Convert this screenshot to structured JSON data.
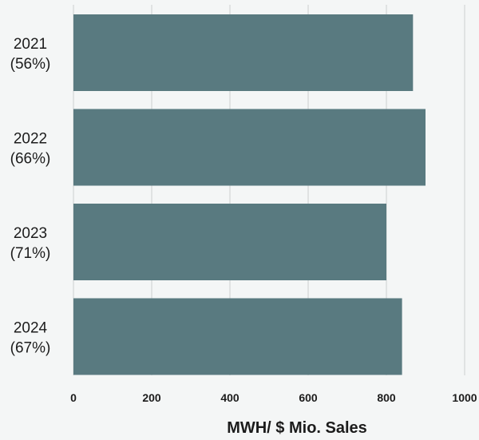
{
  "chart_data": {
    "type": "bar",
    "orientation": "horizontal",
    "categories": [
      [
        "2021",
        "(56%)"
      ],
      [
        "2022",
        "(66%)"
      ],
      [
        "2023",
        "(71%)"
      ],
      [
        "2024",
        "(67%)"
      ]
    ],
    "values": [
      868,
      900,
      800,
      840
    ],
    "xlabel": "MWH/ $ Mio. Sales",
    "xlim": [
      0,
      1000
    ],
    "xticks": [
      0,
      200,
      400,
      600,
      800,
      1000
    ],
    "grid": "vertical",
    "colors": {
      "bar": "#597a80",
      "grid": "#d3d6d6",
      "background": "#f4f6f6"
    }
  }
}
